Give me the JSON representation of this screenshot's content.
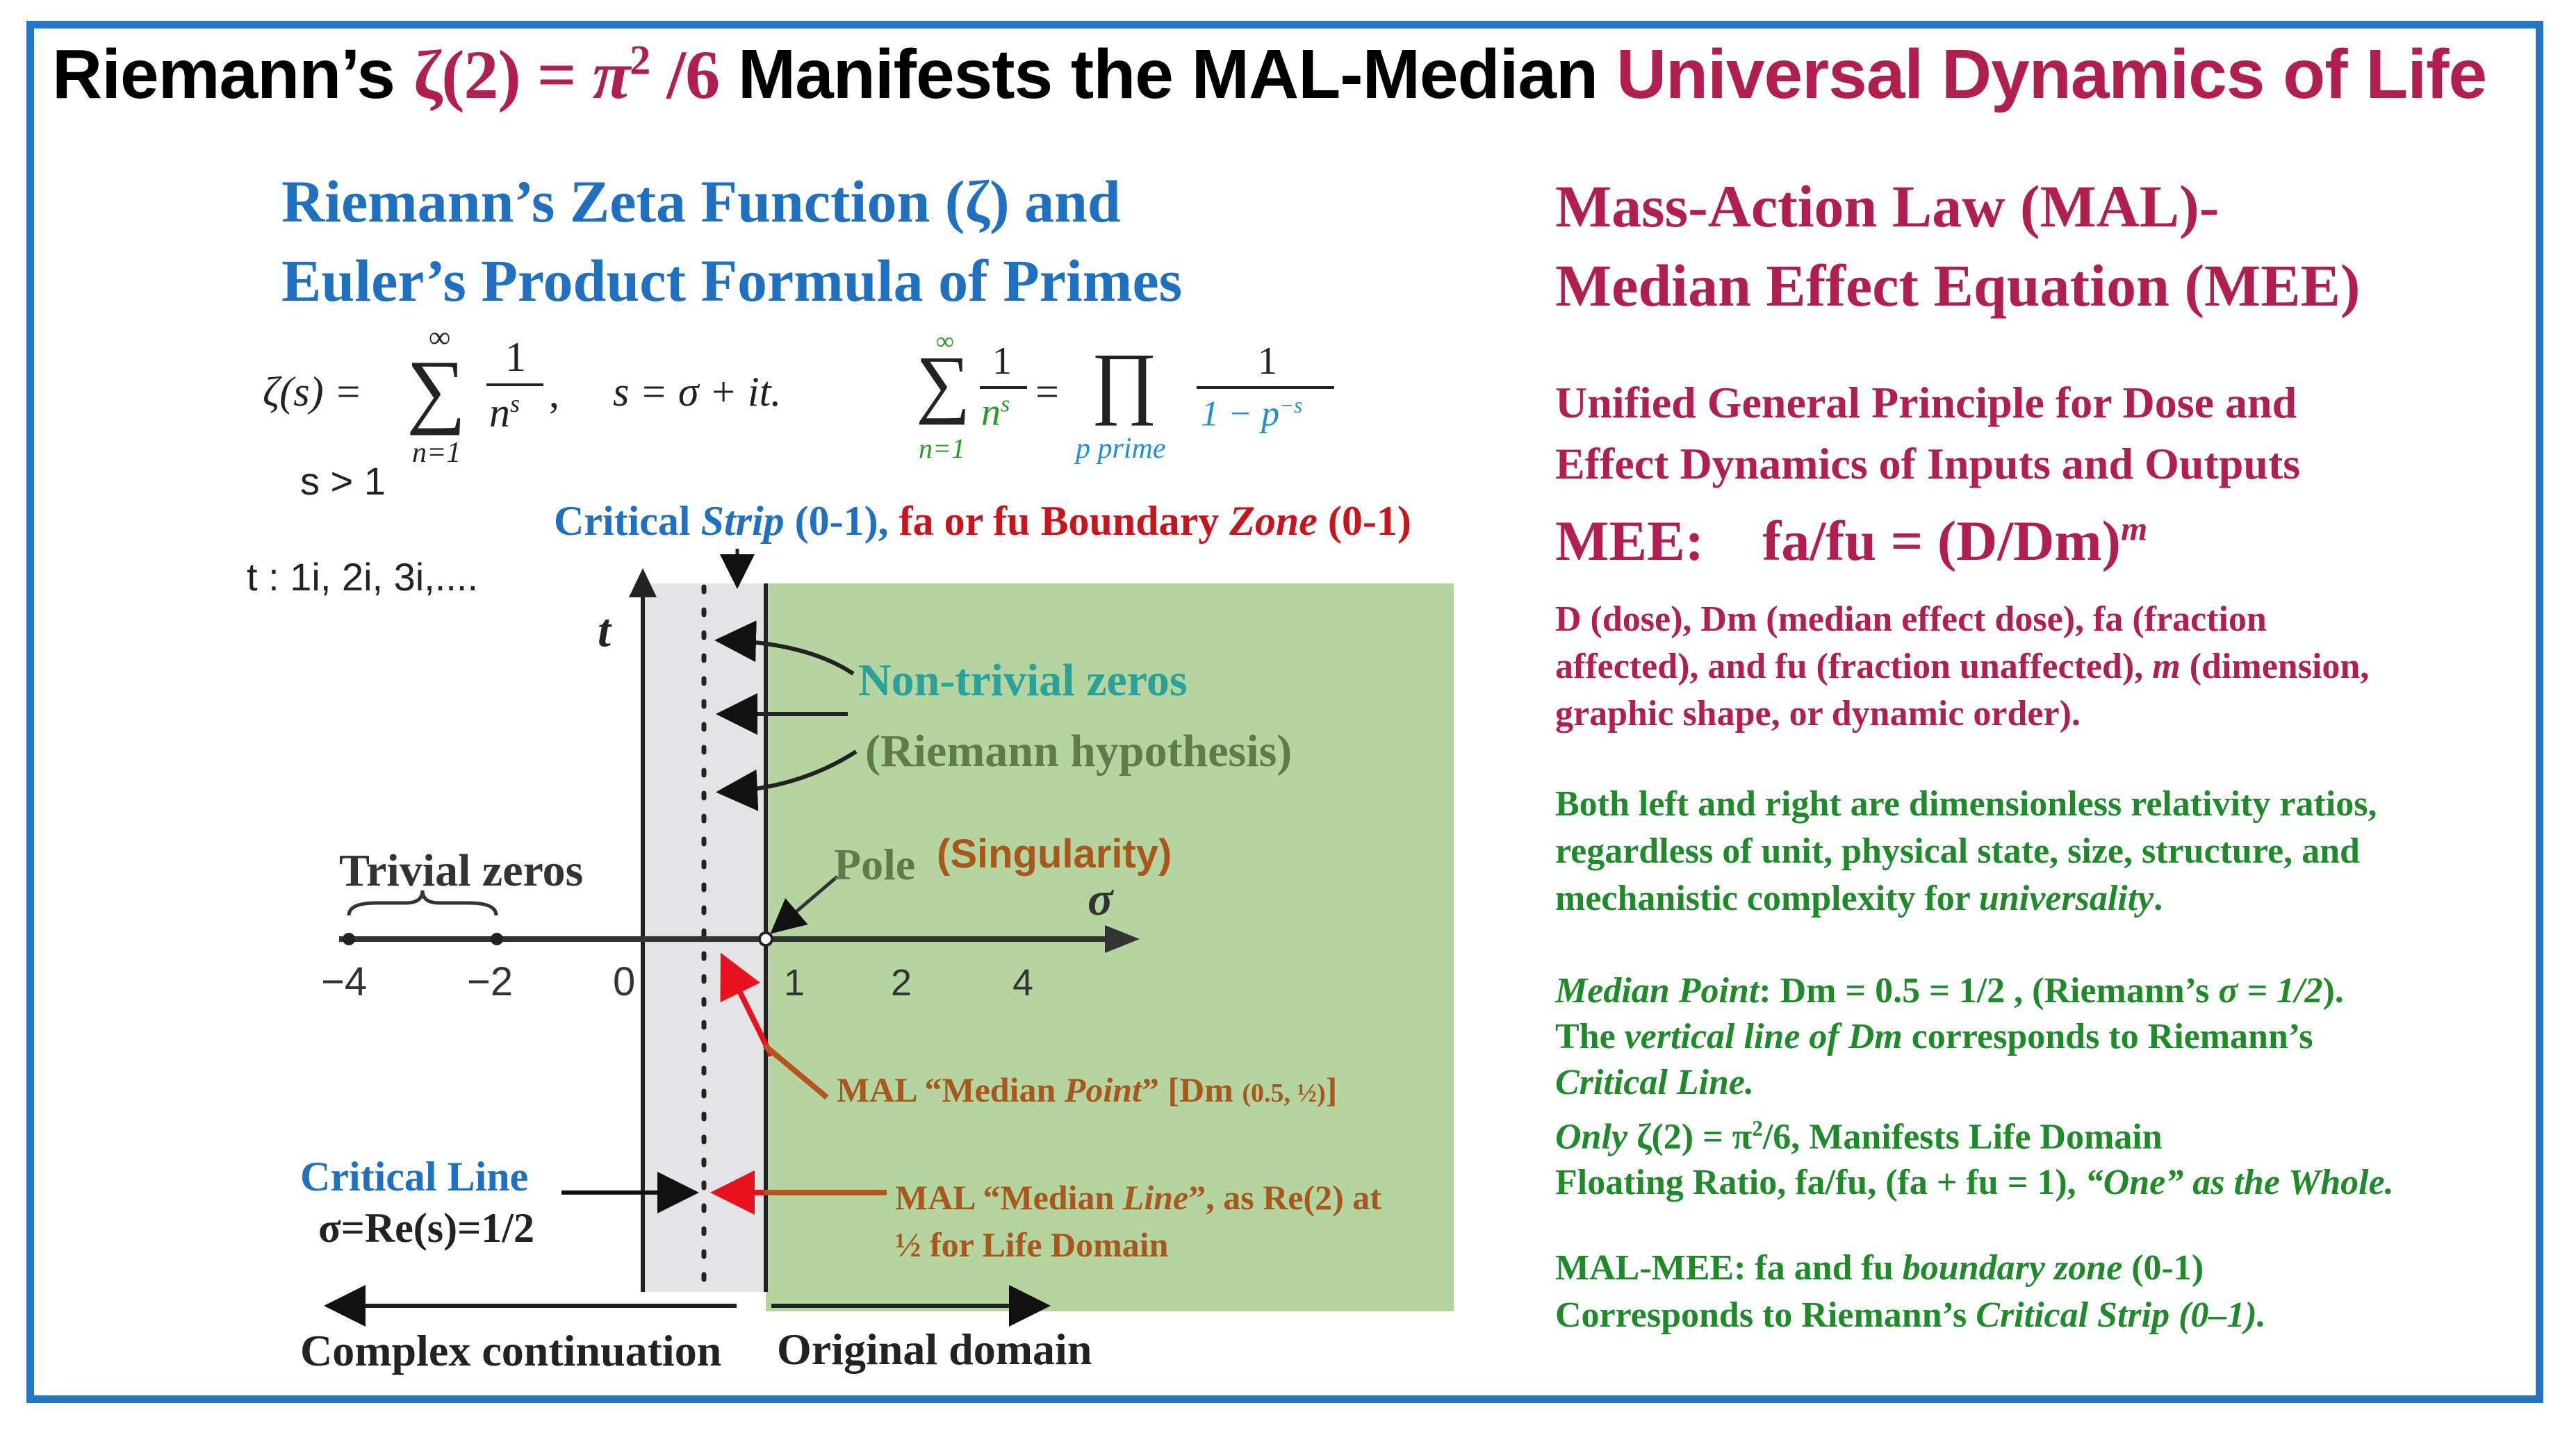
{
  "title": {
    "prefix": "Riemann’s ",
    "zeta2": "ζ(2)",
    "equals": " = ",
    "pi": "π",
    "exp2": "2",
    "over6": " /6",
    "middle": " Manifests the MAL-Median ",
    "highlight": "Universal Dynamics of Life"
  },
  "left": {
    "heading_line1": "Riemann’s Zeta Function (ζ) and",
    "heading_line2": "Euler’s Product Formula of Primes",
    "zeta_lhs": "ζ(s) =",
    "sum_top": "∞",
    "sum_sym": "∑",
    "sum_bottom": "n=1",
    "frac_num": "1",
    "frac_den": "n",
    "frac_den_exp": "s",
    "s_def": "s = σ + it.",
    "euler_sum_top": "∞",
    "euler_sum_bottom": "n=1",
    "euler_num": "1",
    "euler_den": "n",
    "euler_den_exp": "s",
    "euler_eq": "=",
    "prod_sym": "∏",
    "prod_bottom": "p prime",
    "prod_num": "1",
    "prod_den": "1 − p",
    "prod_den_exp": "−s",
    "s_cond": "s > 1",
    "t_values": "t : 1i, 2i, 3i,...."
  },
  "diagram": {
    "strip_label_part1": "Critical ",
    "strip_label_part2": "Strip",
    "strip_label_part3": " (0-1), ",
    "zone_label_part1": "fa or fu Boundary ",
    "zone_label_part2": "Zone",
    "zone_label_part3": " (0-1)",
    "t_axis": "t",
    "sigma_axis": "σ",
    "nontrivial_line1": "Non-trivial zeros",
    "nontrivial_line2": "(Riemann hypothesis)",
    "trivial_zeros": "Trivial zeros",
    "pole": "Pole",
    "singularity": "(Singularity)",
    "ticks": [
      "−4",
      "−2",
      "0",
      "1",
      "2",
      "4"
    ],
    "median_point_part1": "MAL “Median ",
    "median_point_part2": "Point",
    "median_point_part3": "” [Dm ",
    "median_point_part4": "(0.5, ½)",
    "median_point_part5": "]",
    "median_line_1a": "MAL “Median ",
    "median_line_1b": "Line",
    "median_line_1c": "”, as Re(2) at",
    "median_line_2": "½ for Life Domain",
    "critical_line_label": "Critical Line",
    "critical_line_eq": "σ=Re(s)=1/2",
    "complex_continuation": "Complex continuation",
    "original_domain": "Original domain"
  },
  "right": {
    "heading_line1": "Mass-Action Law (MAL)-",
    "heading_line2": "Median Effect Equation (MEE)",
    "unified_line1": "Unified General Principle for Dose and",
    "unified_line2": "Effect Dynamics of Inputs and Outputs",
    "mee_label": "MEE:",
    "mee_equation": "fa/fu = (D/Dm)",
    "mee_exponent": "m",
    "def_line1": "D (dose), Dm (median effect dose), fa (fraction",
    "def_line2a": "affected), and fu (fraction unaffected), ",
    "def_line2b": "m",
    "def_line2c": " (dimension,",
    "def_line3": "graphic shape, or dynamic order).",
    "both_line1": "Both left and right are dimensionless relativity ratios,",
    "both_line2": "regardless of unit, physical state, size, structure, and",
    "both_line3a": "mechanistic complexity for ",
    "both_line3b": "universality",
    "both_line3c": ".",
    "median_point_a": "Median Point",
    "median_point_b": ": Dm = 0.5 = 1/2 , (Riemann’s ",
    "median_point_c": "σ = 1/2",
    "median_point_d": ").",
    "vertical_a": "The ",
    "vertical_b": "vertical line of Dm",
    "vertical_c": " corresponds to Riemann’s",
    "critical_line": "Critical Line.",
    "only_a": "Only",
    "only_b": " ζ(2) = π",
    "only_exp": "2",
    "only_c": "/6, Manifests Life Domain",
    "floating_a": "Floating Ratio, fa/fu, (fa + fu = 1), ",
    "floating_b": "“One” as the Whole.",
    "malmee_a": "MAL-MEE: fa and fu ",
    "malmee_b": "boundary zone",
    "malmee_c": " (0-1)",
    "corresponds_a": "Corresponds to Riemann’s ",
    "corresponds_b": "Critical Strip (0–1)."
  },
  "colors": {
    "frame": "#2475c2",
    "green_zone": "#b4d5a0",
    "critical_strip": "#e4e4e6",
    "title_highlight": "#b01f4e",
    "blue_heading": "#1f70c1",
    "green_text": "#1e8a2a",
    "red_arrow": "#e8121e"
  }
}
